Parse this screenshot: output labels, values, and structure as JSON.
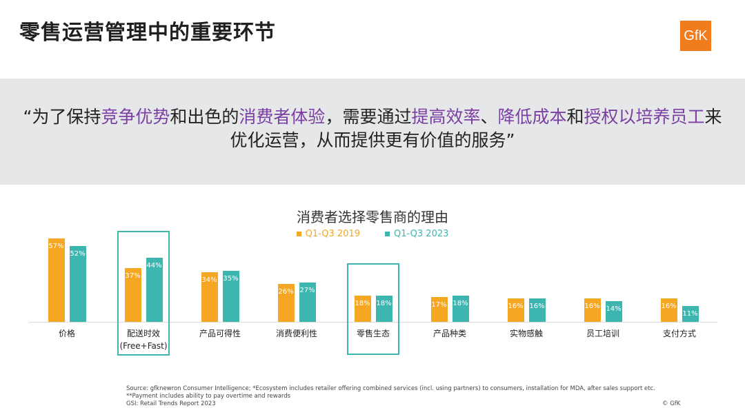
{
  "header": {
    "title": "零售运营管理中的重要环节",
    "logo_text": "GfK",
    "brand_color": "#f07c1e"
  },
  "quote": {
    "segments": [
      {
        "text": "“为了保持",
        "highlight": false
      },
      {
        "text": "竞争优势",
        "highlight": true
      },
      {
        "text": "和出色的",
        "highlight": false
      },
      {
        "text": "消费者体验",
        "highlight": true
      },
      {
        "text": "，需要通过",
        "highlight": false
      },
      {
        "text": "提高效率",
        "highlight": true
      },
      {
        "text": "、",
        "highlight": false
      },
      {
        "text": "降低成本",
        "highlight": true
      },
      {
        "text": "和",
        "highlight": false
      },
      {
        "text": "授权以培养员工",
        "highlight": true
      },
      {
        "text": "来优化运营，从而提供更有价值的服务”",
        "highlight": false
      }
    ],
    "highlight_color": "#7b3fa3"
  },
  "chart_data": {
    "type": "bar",
    "title": "消费者选择零售商的理由",
    "categories": [
      "价格",
      "配送时效\n(Free+Fast)",
      "产品可得性",
      "消费便利性",
      "零售生态",
      "产品种类",
      "实物感触",
      "员工培训",
      "支付方式"
    ],
    "series": [
      {
        "name": "Q1-Q3 2019",
        "color": "#f5a623",
        "values": [
          57,
          37,
          34,
          26,
          18,
          17,
          16,
          16,
          16
        ],
        "labels": [
          "57%",
          "37%",
          "34%",
          "26%",
          "18%",
          "17%",
          "16%",
          "16%",
          "16%"
        ]
      },
      {
        "name": "Q1-Q3 2023",
        "color": "#3db6b0",
        "values": [
          52,
          44,
          35,
          27,
          18,
          18,
          16,
          14,
          11
        ],
        "labels": [
          "52%",
          "44%",
          "35%",
          "27%",
          "18%",
          "18%",
          "16%",
          "14%",
          "11%"
        ]
      }
    ],
    "ylim": [
      0,
      60
    ],
    "highlighted_categories": [
      1,
      4
    ],
    "highlight_color": "#3db6b0",
    "legend_position": "top-center",
    "grid": false
  },
  "footer": {
    "source_line1": "Source: gfknewron Consumer Intelligence; *Ecosystem includes retailer offering combined services (incl. using partners) to consumers, installation for MDA, after sales support etc. **Payment includes ability to pay overtime  and rewards",
    "source_line2": "GSI: Retail Trends Report 2023",
    "copyright": "© GfK"
  }
}
